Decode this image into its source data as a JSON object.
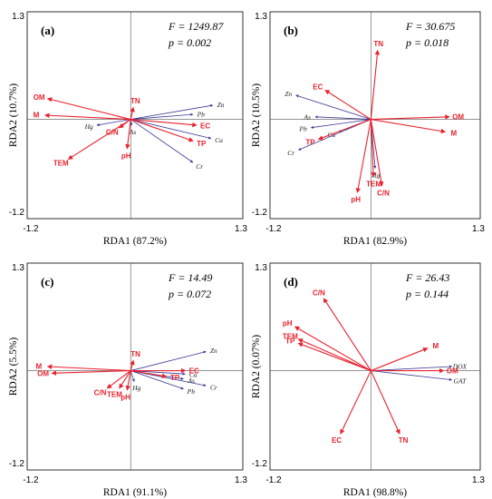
{
  "chart_data": [
    {
      "type": "scatter",
      "panel": "(a)",
      "xlabel": "RDA1 (87.2%)",
      "ylabel": "RDA2 (10.7%)",
      "xlim": [
        -1.2,
        1.3
      ],
      "ylim": [
        -1.2,
        1.3
      ],
      "xticks": [
        "-1.2",
        "1.3"
      ],
      "yticks": [
        "1.3",
        "-1.2"
      ],
      "stat_F": "F = 1249.87",
      "stat_p": "p = 0.002",
      "environment_arrows": [
        {
          "name": "OM",
          "x": -0.96,
          "y": 0.25
        },
        {
          "name": "M",
          "x": -0.99,
          "y": 0.05
        },
        {
          "name": "TN",
          "x": 0.03,
          "y": 0.14
        },
        {
          "name": "C/N",
          "x": -0.13,
          "y": -0.1
        },
        {
          "name": "TEM",
          "x": -0.72,
          "y": -0.48
        },
        {
          "name": "pH",
          "x": -0.04,
          "y": -0.35
        },
        {
          "name": "EC",
          "x": 0.76,
          "y": -0.07
        },
        {
          "name": "TP",
          "x": 0.72,
          "y": -0.26
        }
      ],
      "species_arrows": [
        {
          "name": "Zn",
          "x": 0.95,
          "y": 0.17
        },
        {
          "name": "Pb",
          "x": 0.72,
          "y": 0.06
        },
        {
          "name": "Hg",
          "x": -0.39,
          "y": -0.07
        },
        {
          "name": "As",
          "x": 0.01,
          "y": -0.07
        },
        {
          "name": "Cu",
          "x": 0.93,
          "y": -0.23
        },
        {
          "name": "Cr",
          "x": 0.72,
          "y": -0.52
        }
      ]
    },
    {
      "type": "scatter",
      "panel": "(b)",
      "xlabel": "RDA1 (82.9%)",
      "ylabel": "RDA2 (10.5%)",
      "xlim": [
        -1.2,
        1.3
      ],
      "ylim": [
        -1.2,
        1.3
      ],
      "xticks": [
        "-1.2",
        "1.3"
      ],
      "yticks": [
        "1.3",
        "-1.2"
      ],
      "stat_F": "F = 30.675",
      "stat_p": "p = 0.018",
      "environment_arrows": [
        {
          "name": "TN",
          "x": 0.08,
          "y": 0.83
        },
        {
          "name": "EC",
          "x": -0.54,
          "y": 0.35
        },
        {
          "name": "OM",
          "x": 0.93,
          "y": 0.03
        },
        {
          "name": "M",
          "x": 0.88,
          "y": -0.15
        },
        {
          "name": "TP",
          "x": -0.62,
          "y": -0.24
        },
        {
          "name": "TEM",
          "x": 0.03,
          "y": -0.69
        },
        {
          "name": "C/N",
          "x": 0.13,
          "y": -0.8
        },
        {
          "name": "pH",
          "x": -0.16,
          "y": -0.88
        }
      ],
      "species_arrows": [
        {
          "name": "Zn",
          "x": -0.89,
          "y": 0.29
        },
        {
          "name": "As",
          "x": -0.66,
          "y": 0.03
        },
        {
          "name": "Pb",
          "x": -0.71,
          "y": -0.1
        },
        {
          "name": "Cu",
          "x": -0.38,
          "y": -0.15
        },
        {
          "name": "Cr",
          "x": -0.86,
          "y": -0.37
        },
        {
          "name": "Hg",
          "x": 0.05,
          "y": -0.59
        }
      ]
    },
    {
      "type": "scatter",
      "panel": "(c)",
      "xlabel": "RDA1 (91.1%)",
      "ylabel": "RDA2 (5.5%)",
      "xlim": [
        -1.2,
        1.3
      ],
      "ylim": [
        -1.2,
        1.3
      ],
      "xticks": [
        "-1.2",
        "1.3"
      ],
      "yticks": [
        "1.3",
        "-1.2"
      ],
      "stat_F": "F = 14.49",
      "stat_p": "p = 0.072",
      "environment_arrows": [
        {
          "name": "TN",
          "x": 0.03,
          "y": 0.12
        },
        {
          "name": "M",
          "x": -0.96,
          "y": 0.05
        },
        {
          "name": "OM",
          "x": -0.91,
          "y": -0.03
        },
        {
          "name": "C/N",
          "x": -0.27,
          "y": -0.21
        },
        {
          "name": "TEM",
          "x": -0.13,
          "y": -0.21
        },
        {
          "name": "pH",
          "x": -0.04,
          "y": -0.23
        },
        {
          "name": "EC",
          "x": 0.63,
          "y": 0.0
        },
        {
          "name": "TP",
          "x": 0.41,
          "y": -0.07
        }
      ],
      "species_arrows": [
        {
          "name": "Zn",
          "x": 0.87,
          "y": 0.23
        },
        {
          "name": "Cu",
          "x": 0.63,
          "y": -0.04
        },
        {
          "name": "Hg",
          "x": 0.04,
          "y": -0.13
        },
        {
          "name": "As",
          "x": 0.61,
          "y": -0.1
        },
        {
          "name": "Pb",
          "x": 0.61,
          "y": -0.22
        },
        {
          "name": "Cr",
          "x": 0.87,
          "y": -0.18
        }
      ]
    },
    {
      "type": "scatter",
      "panel": "(d)",
      "xlabel": "RDA1 (98.8%)",
      "ylabel": "RDA2 (0.07%)",
      "xlim": [
        -1.2,
        1.3
      ],
      "ylim": [
        -1.2,
        1.3
      ],
      "xticks": [
        "-1.2",
        "1.3"
      ],
      "yticks": [
        "1.3",
        "-1.2"
      ],
      "stat_F": "F = 26.43",
      "stat_p": "p = 0.144",
      "environment_arrows": [
        {
          "name": "C/N",
          "x": -0.56,
          "y": 0.87
        },
        {
          "name": "pH",
          "x": -0.9,
          "y": 0.53
        },
        {
          "name": "TEM",
          "x": -0.86,
          "y": 0.38
        },
        {
          "name": "TP",
          "x": -0.86,
          "y": 0.33
        },
        {
          "name": "M",
          "x": 0.67,
          "y": 0.27
        },
        {
          "name": "OM",
          "x": 0.86,
          "y": 0.0
        },
        {
          "name": "EC",
          "x": -0.36,
          "y": -0.76
        },
        {
          "name": "TN",
          "x": 0.34,
          "y": -0.76
        }
      ],
      "species_arrows": [
        {
          "name": "DOX",
          "x": 0.96,
          "y": 0.05
        },
        {
          "name": "GAT",
          "x": 0.96,
          "y": -0.11
        }
      ]
    }
  ]
}
